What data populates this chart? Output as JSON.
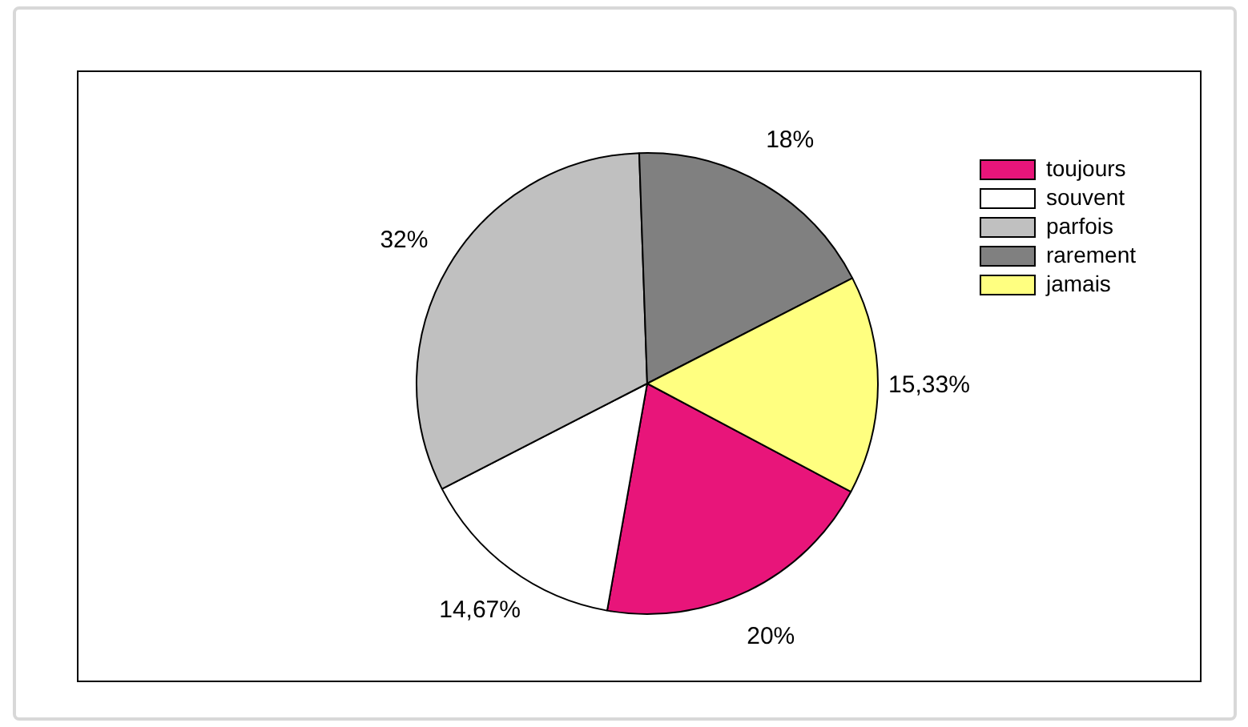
{
  "chart_data": {
    "type": "pie",
    "categories": [
      "toujours",
      "souvent",
      "parfois",
      "rarement",
      "jamais"
    ],
    "values": [
      20,
      14.67,
      32,
      18,
      15.33
    ],
    "colors": [
      "#e8157a",
      "#ffffff",
      "#c0c0c0",
      "#808080",
      "#ffff80"
    ],
    "value_labels": [
      "20%",
      "14,67%",
      "32%",
      "18%",
      "15,33%"
    ],
    "legend": "top right"
  }
}
